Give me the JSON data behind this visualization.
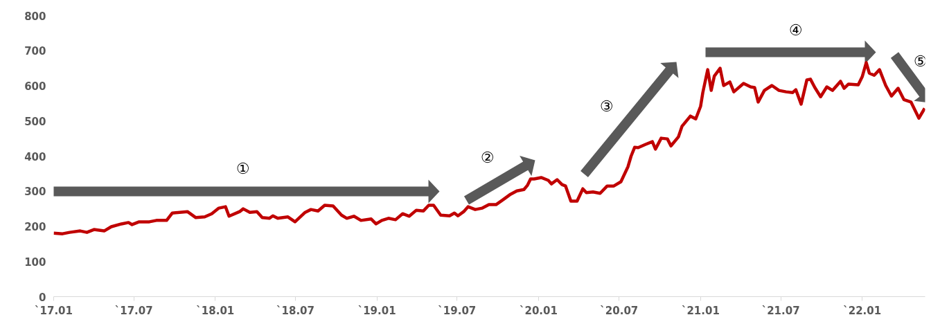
{
  "chart_data": {
    "type": "line",
    "xlim": [
      "2017-01-01",
      "2022-05-23"
    ],
    "ylim": [
      0,
      800
    ],
    "yticks": [
      0,
      100,
      200,
      300,
      400,
      500,
      600,
      700,
      800
    ],
    "xticks": [
      {
        "value": "2017-01-01",
        "label": "`17.01"
      },
      {
        "value": "2017-07-01",
        "label": "`17.07"
      },
      {
        "value": "2018-01-01",
        "label": "`18.01"
      },
      {
        "value": "2018-07-01",
        "label": "`18.07"
      },
      {
        "value": "2019-01-01",
        "label": "`19.01"
      },
      {
        "value": "2019-07-01",
        "label": "`19.07"
      },
      {
        "value": "2020-01-01",
        "label": "`20.01"
      },
      {
        "value": "2020-07-01",
        "label": "`20.07"
      },
      {
        "value": "2021-01-01",
        "label": "`21.01"
      },
      {
        "value": "2021-07-01",
        "label": "`21.07"
      },
      {
        "value": "2022-01-01",
        "label": "`22.01"
      }
    ],
    "grid": false,
    "annotations": [
      "①",
      "②",
      "③",
      "④",
      "⑤"
    ],
    "series": [
      {
        "color": "#c00000",
        "x": [
          "2017-01-01",
          "2017-01-21",
          "2017-02-06",
          "2017-03-02",
          "2017-03-17",
          "2017-04-02",
          "2017-04-25",
          "2017-05-11",
          "2017-06-03",
          "2017-06-19",
          "2017-06-27",
          "2017-07-13",
          "2017-08-05",
          "2017-08-21",
          "2017-09-13",
          "2017-09-26",
          "2017-10-30",
          "2017-11-18",
          "2017-12-08",
          "2017-12-24",
          "2018-01-09",
          "2018-01-24",
          "2018-02-01",
          "2018-02-25",
          "2018-03-05",
          "2018-03-20",
          "2018-04-05",
          "2018-04-17",
          "2018-05-03",
          "2018-05-11",
          "2018-05-22",
          "2018-06-14",
          "2018-06-30",
          "2018-07-23",
          "2018-08-05",
          "2018-08-21",
          "2018-09-05",
          "2018-09-24",
          "2018-10-13",
          "2018-10-25",
          "2018-11-10",
          "2018-11-26",
          "2018-12-19",
          "2018-12-30",
          "2019-01-12",
          "2019-01-27",
          "2019-02-12",
          "2019-02-28",
          "2019-03-15",
          "2019-03-31",
          "2019-04-16",
          "2019-04-28",
          "2019-05-09",
          "2019-05-25",
          "2019-06-14",
          "2019-06-25",
          "2019-07-03",
          "2019-07-16",
          "2019-07-26",
          "2019-08-11",
          "2019-08-27",
          "2019-09-11",
          "2019-09-27",
          "2019-10-13",
          "2019-10-28",
          "2019-11-13",
          "2019-11-29",
          "2019-12-07",
          "2019-12-14",
          "2019-12-22",
          "2020-01-07",
          "2020-01-23",
          "2020-01-30",
          "2020-02-12",
          "2020-02-23",
          "2020-03-02",
          "2020-03-14",
          "2020-03-28",
          "2020-04-10",
          "2020-04-18",
          "2020-05-03",
          "2020-05-19",
          "2020-06-04",
          "2020-06-19",
          "2020-07-05",
          "2020-07-21",
          "2020-07-28",
          "2020-08-05",
          "2020-08-13",
          "2020-08-29",
          "2020-09-14",
          "2020-09-21",
          "2020-10-04",
          "2020-10-18",
          "2020-10-26",
          "2020-11-12",
          "2020-11-20",
          "2020-12-09",
          "2020-12-21",
          "2021-01-01",
          "2021-01-06",
          "2021-01-17",
          "2021-01-25",
          "2021-02-01",
          "2021-02-14",
          "2021-02-22",
          "2021-03-08",
          "2021-03-17",
          "2021-04-08",
          "2021-04-24",
          "2021-05-03",
          "2021-05-11",
          "2021-05-25",
          "2021-06-11",
          "2021-06-27",
          "2021-07-13",
          "2021-07-28",
          "2021-08-04",
          "2021-08-16",
          "2021-08-29",
          "2021-09-06",
          "2021-09-16",
          "2021-09-29",
          "2021-10-13",
          "2021-10-26",
          "2021-11-13",
          "2021-11-21",
          "2021-12-01",
          "2021-12-23",
          "2022-01-01",
          "2022-01-10",
          "2022-01-17",
          "2022-01-28",
          "2022-02-09",
          "2022-02-23",
          "2022-03-08",
          "2022-03-23",
          "2022-04-05",
          "2022-04-21",
          "2022-05-09",
          "2022-05-22"
        ],
        "values": [
          181,
          179,
          183,
          187,
          183,
          191,
          187,
          199,
          207,
          211,
          205,
          213,
          213,
          217,
          217,
          238,
          242,
          225,
          227,
          236,
          252,
          256,
          229,
          242,
          250,
          240,
          242,
          225,
          223,
          230,
          223,
          227,
          213,
          240,
          248,
          244,
          260,
          258,
          232,
          223,
          229,
          217,
          221,
          207,
          217,
          223,
          219,
          236,
          229,
          246,
          244,
          260,
          260,
          232,
          230,
          238,
          230,
          242,
          256,
          248,
          252,
          262,
          262,
          276,
          290,
          301,
          305,
          317,
          335,
          335,
          339,
          331,
          321,
          333,
          319,
          315,
          272,
          272,
          307,
          296,
          298,
          294,
          315,
          315,
          327,
          370,
          400,
          425,
          424,
          433,
          441,
          420,
          451,
          449,
          429,
          455,
          485,
          514,
          506,
          542,
          581,
          646,
          587,
          628,
          650,
          601,
          611,
          583,
          607,
          597,
          595,
          554,
          587,
          601,
          587,
          583,
          581,
          589,
          548,
          617,
          619,
          595,
          569,
          597,
          587,
          613,
          593,
          605,
          603,
          626,
          666,
          636,
          630,
          646,
          601,
          571,
          593,
          561,
          554,
          508,
          536
        ]
      }
    ]
  }
}
